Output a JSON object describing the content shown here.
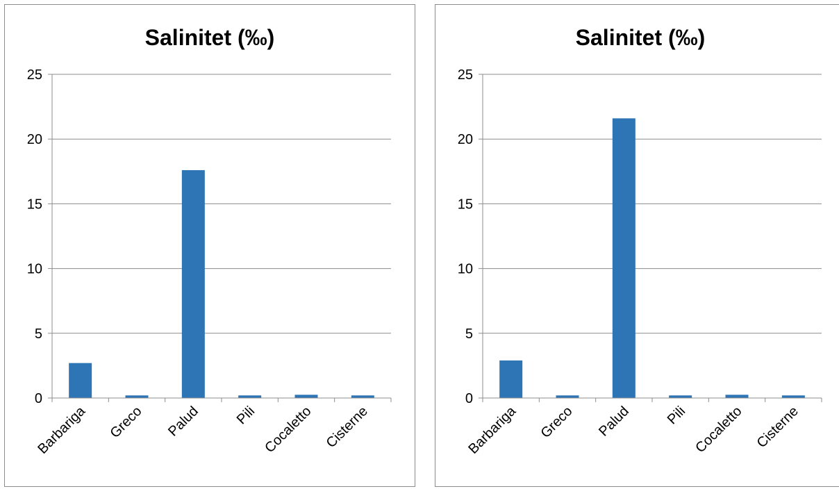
{
  "chart_data": [
    {
      "type": "bar",
      "title": "Salinitet (‰)",
      "categories": [
        "Barbariga",
        "Greco",
        "Palud",
        "Pili",
        "Cocaletto",
        "Cisterne"
      ],
      "values": [
        2.7,
        0.2,
        17.6,
        0.2,
        0.25,
        0.2
      ],
      "ylim": [
        0,
        25
      ],
      "yticks": [
        "0",
        "5",
        "10",
        "15",
        "20",
        "25"
      ],
      "grid": true,
      "color": "#2e75b6"
    },
    {
      "type": "bar",
      "title": "Salinitet (‰)",
      "categories": [
        "Barbariga",
        "Greco",
        "Palud",
        "Pili",
        "Cocaletto",
        "Cisterne"
      ],
      "values": [
        2.9,
        0.2,
        21.6,
        0.2,
        0.25,
        0.2
      ],
      "ylim": [
        0,
        25
      ],
      "yticks": [
        "0",
        "5",
        "10",
        "15",
        "20",
        "25"
      ],
      "grid": true,
      "color": "#2e75b6"
    }
  ]
}
